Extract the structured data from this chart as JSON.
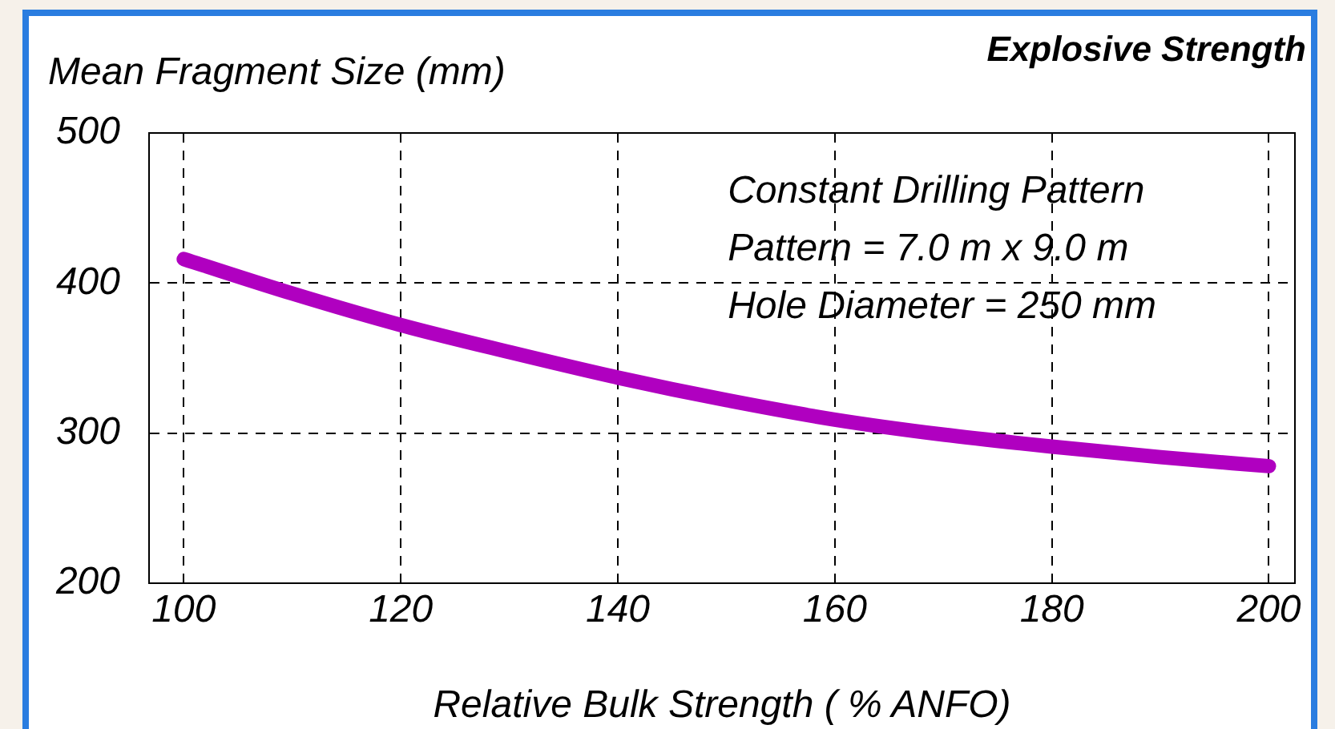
{
  "chart_data": {
    "type": "line",
    "title": "Explosive Strength",
    "xlabel": "Relative Bulk Strength ( % ANFO)",
    "ylabel": "Mean Fragment Size (mm)",
    "annotations": [
      "Constant Drilling Pattern",
      "Pattern = 7.0 m x 9.0 m",
      "Hole Diameter = 250 mm"
    ],
    "x": [
      100,
      110,
      120,
      130,
      140,
      150,
      160,
      170,
      180,
      190,
      200
    ],
    "values": [
      416,
      393,
      372,
      354,
      337,
      322,
      309,
      299,
      291,
      284,
      278
    ],
    "color": "#b000c0",
    "marker": "none",
    "line_style": "solid",
    "xlim": [
      96.8,
      202.4
    ],
    "xticks": [
      100,
      120,
      140,
      160,
      180,
      200
    ],
    "ylim": [
      200,
      500
    ],
    "yticks": [
      200,
      300,
      400,
      500
    ],
    "grid": true
  }
}
